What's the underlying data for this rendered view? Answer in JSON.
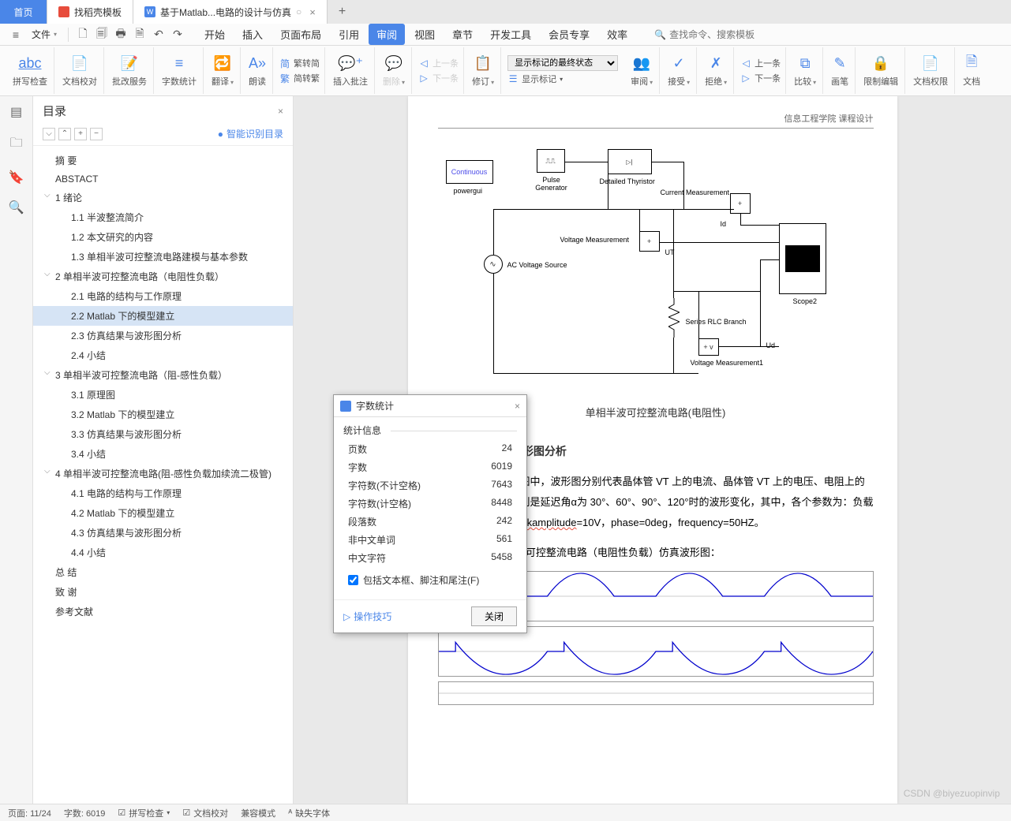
{
  "tabs": {
    "home": "首页",
    "t1": "找稻壳模板",
    "t2": "基于Matlab...电路的设计与仿真"
  },
  "menubar": {
    "file": "文件",
    "tabs": [
      "开始",
      "插入",
      "页面布局",
      "引用",
      "审阅",
      "视图",
      "章节",
      "开发工具",
      "会员专享",
      "效率"
    ],
    "active_index": 4,
    "search_placeholder": "查找命令、搜索模板"
  },
  "ribbon": {
    "g1": "拼写检查",
    "g2": "文档校对",
    "g3": "批改服务",
    "g4": "字数统计",
    "g5": "翻译",
    "g6": "朗读",
    "conv1": "繁转简",
    "conv2": "简转繁",
    "g8": "插入批注",
    "g9": "删除",
    "prev": "上一条",
    "next": "下一条",
    "g10": "修订",
    "track_select": "显示标记的最终状态",
    "track_btn": "显示标记",
    "g11": "审阅",
    "g12": "接受",
    "g13": "拒绝",
    "g13a": "上一条",
    "g13b": "下一条",
    "g14": "比较",
    "g15": "画笔",
    "g16": "限制编辑",
    "g17": "文档权限",
    "g18": "文档"
  },
  "outline": {
    "title": "目录",
    "smart": "智能识别目录",
    "items": [
      {
        "level": 1,
        "text": "摘 要"
      },
      {
        "level": 1,
        "text": "ABSTACT"
      },
      {
        "level": 1,
        "text": "1 绪论",
        "chev": true
      },
      {
        "level": 2,
        "text": "1.1 半波整流简介"
      },
      {
        "level": 2,
        "text": "1.2 本文研究的内容"
      },
      {
        "level": 2,
        "text": "1.3 单相半波可控整流电路建模与基本参数"
      },
      {
        "level": 1,
        "text": "2 单相半波可控整流电路（电阻性负载）",
        "chev": true
      },
      {
        "level": 2,
        "text": "2.1 电路的结构与工作原理"
      },
      {
        "level": 2,
        "text": "2.2 Matlab 下的模型建立",
        "selected": true
      },
      {
        "level": 2,
        "text": "2.3 仿真结果与波形图分析"
      },
      {
        "level": 2,
        "text": "2.4 小结"
      },
      {
        "level": 1,
        "text": "3 单相半波可控整流电路（阻-感性负载）",
        "chev": true
      },
      {
        "level": 2,
        "text": "3.1 原理图"
      },
      {
        "level": 2,
        "text": "3.2 Matlab 下的模型建立"
      },
      {
        "level": 2,
        "text": "3.3 仿真结果与波形图分析"
      },
      {
        "level": 2,
        "text": "3.4 小结"
      },
      {
        "level": 1,
        "text": "4 单相半波可控整流电路(阻-感性负载加续流二极管)",
        "chev": true
      },
      {
        "level": 2,
        "text": "4.1 电路的结构与工作原理"
      },
      {
        "level": 2,
        "text": "4.2 Matlab 下的模型建立"
      },
      {
        "level": 2,
        "text": "4.3 仿真结果与波形图分析"
      },
      {
        "level": 2,
        "text": "4.4 小结"
      },
      {
        "level": 1,
        "text": "总 结"
      },
      {
        "level": 1,
        "text": "致 谢"
      },
      {
        "level": 1,
        "text": "参考文献"
      }
    ]
  },
  "dialog": {
    "title": "字数统计",
    "section": "统计信息",
    "rows": [
      {
        "k": "页数",
        "v": "24"
      },
      {
        "k": "字数",
        "v": "6019"
      },
      {
        "k": "字符数(不计空格)",
        "v": "7643"
      },
      {
        "k": "字符数(计空格)",
        "v": "8448"
      },
      {
        "k": "段落数",
        "v": "242"
      },
      {
        "k": "非中文单词",
        "v": "561"
      },
      {
        "k": "中文字符",
        "v": "5458"
      }
    ],
    "checkbox": "包括文本框、脚注和尾注(F)",
    "tips": "操作技巧",
    "close_btn": "关闭"
  },
  "page": {
    "header": "信息工程学院 课程设计",
    "circuit": {
      "powergui": "Continuous",
      "powergui_label": "powergui",
      "pulse": "Pulse\nGenerator",
      "thyristor": "Detailed Thyristor",
      "current": "Current Measurement",
      "ac": "AC Voltage Source",
      "vm": "Voltage Measurement",
      "ut": "UT",
      "id": "Id",
      "rlc": "Series RLC Branch",
      "ud": "Ud",
      "vm1": "Voltage Measurement1",
      "scope": "Scope2"
    },
    "circuit_title": "单相半波可控整流电路(电阻性)",
    "section": "2.3 仿真结果与波形图分析",
    "para1a": "下列所示波形图中，波形图分别代表晶体管 VT 上的电流、晶体管 VT 上的电压、电阻上的电压。下列波形分别是延迟角α为 30°、60°、90°、120°时的波形变化，其中，各个参数为：负载 R=1Ω，L=0H，",
    "para1b": "peakamplitude",
    "para1c": "=10V，phase=0deg，frequency=50HZ。",
    "line2": "1)α=30°，单相半波可控整流电路（电阻性负载）仿真波形图：",
    "wave": {
      "stroke": "#0000ff",
      "grid": "#cccccc",
      "ylim1": [
        -100,
        100
      ],
      "ylim2": [
        -200,
        200
      ]
    }
  },
  "status": {
    "page": "页面: 11/24",
    "words": "字数: 6019",
    "spell": "拼写检查",
    "proof": "文档校对",
    "compat": "兼容模式",
    "missing": "缺失字体"
  },
  "watermark": "CSDN @biyezuopinvip",
  "colors": {
    "primary": "#4a86e8",
    "tab_red": "#e74c3c"
  }
}
